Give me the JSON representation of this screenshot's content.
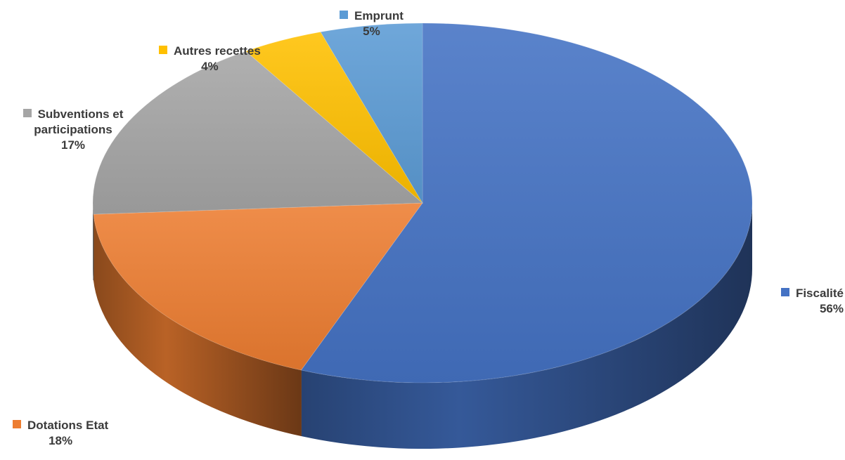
{
  "chart_data": {
    "type": "pie",
    "style": "3d",
    "title": "",
    "slices": [
      {
        "label": "Fiscalité",
        "value": 56,
        "value_label": "56%",
        "color": "#4472C4"
      },
      {
        "label": "Dotations Etat",
        "value": 18,
        "value_label": "18%",
        "color": "#ED7D31"
      },
      {
        "label": "Subventions et participations",
        "label_lines": [
          "Subventions et",
          "participations"
        ],
        "value": 17,
        "value_label": "17%",
        "color": "#A5A5A5"
      },
      {
        "label": "Autres recettes",
        "value": 4,
        "value_label": "4%",
        "color": "#FFC000"
      },
      {
        "label": "Emprunt",
        "value": 5,
        "value_label": "5%",
        "color": "#5B9BD5"
      }
    ],
    "legend": "labels next to slices"
  }
}
